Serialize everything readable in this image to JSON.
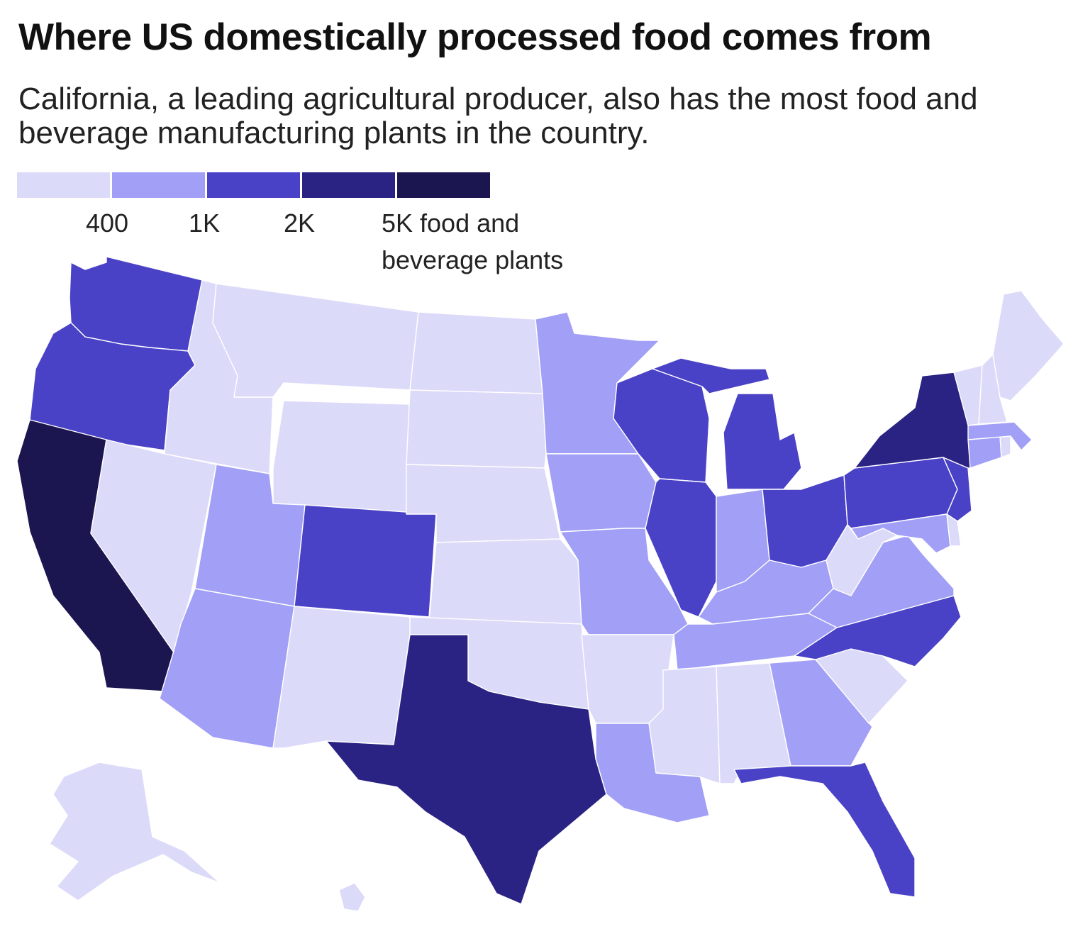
{
  "title": "Where US domestically processed food comes from",
  "subtitle": "California, a leading agricultural producer, also has the most food and beverage manufacturing plants in the country.",
  "legend": {
    "colors": [
      "#dcdaf9",
      "#a29ff6",
      "#4a42c6",
      "#2b2383",
      "#1b1650"
    ],
    "labels": [
      "400",
      "1K",
      "2K",
      "5K food and beverage plants"
    ]
  },
  "states": {
    "WA": 3,
    "OR": 3,
    "CA": 5,
    "ID": 1,
    "NV": 1,
    "MT": 1,
    "WY": 1,
    "UT": 2,
    "AZ": 2,
    "CO": 3,
    "NM": 1,
    "ND": 1,
    "SD": 1,
    "NE": 1,
    "KS": 1,
    "OK": 1,
    "TX": 4,
    "MN": 2,
    "IA": 2,
    "MO": 2,
    "AR": 1,
    "LA": 2,
    "WI": 3,
    "IL": 3,
    "MI": 3,
    "IN": 2,
    "OH": 3,
    "KY": 2,
    "TN": 2,
    "MS": 1,
    "AL": 1,
    "GA": 2,
    "FL": 3,
    "SC": 1,
    "NC": 3,
    "VA": 2,
    "WV": 1,
    "PA": 3,
    "NY": 4,
    "NJ": 3,
    "MD": 2,
    "DE": 1,
    "CT": 2,
    "MA": 2,
    "RI": 1,
    "VT": 1,
    "NH": 1,
    "ME": 1,
    "AK": 1,
    "HI": 1
  }
}
